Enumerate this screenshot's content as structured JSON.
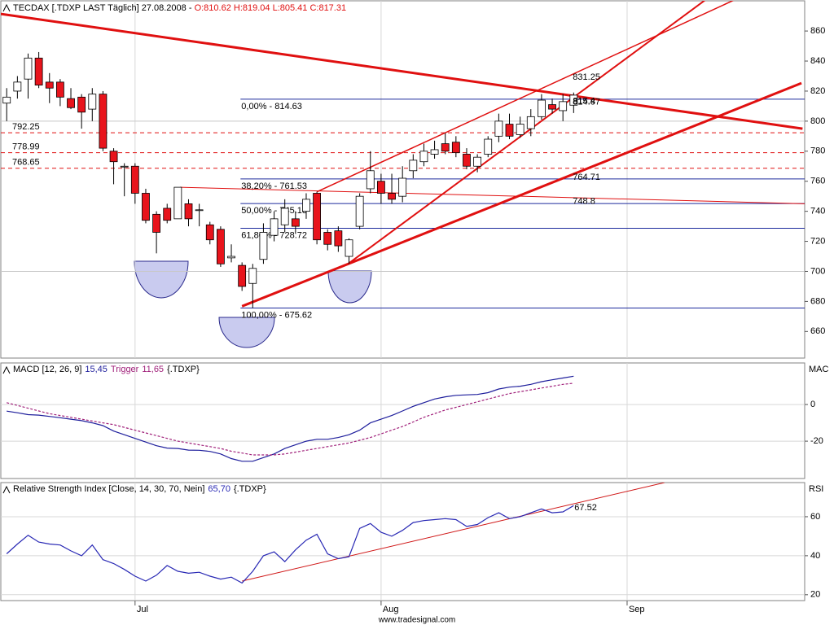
{
  "chart_data": [
    {
      "type": "candlestick",
      "title": "TECDAX [.TDXP LAST Täglich] 27.08.2008 - ",
      "title_values": "O:810.62 H:819.04 L:805.41 C:817.31",
      "open": [
        812,
        820,
        828,
        842,
        826,
        826,
        815,
        816,
        808,
        818,
        780,
        770,
        770,
        752,
        738,
        742,
        735,
        745,
        741,
        731,
        728,
        709,
        704,
        692,
        708,
        724,
        731,
        735,
        740,
        752,
        726,
        727,
        710,
        730,
        755,
        760,
        752,
        750,
        767,
        773,
        778,
        785,
        786,
        778,
        770,
        778,
        790,
        798,
        791,
        795,
        803,
        811,
        807,
        810.62
      ],
      "high": [
        822,
        830,
        845,
        846,
        832,
        828,
        822,
        818,
        822,
        820,
        782,
        772,
        772,
        755,
        740,
        745,
        756,
        748,
        745,
        733,
        730,
        718,
        706,
        705,
        732,
        740,
        748,
        740,
        752,
        753,
        728,
        730,
        722,
        752,
        780,
        765,
        765,
        770,
        778,
        785,
        787,
        792,
        790,
        782,
        778,
        790,
        805,
        805,
        803,
        808,
        818,
        815,
        818,
        819.04
      ],
      "low": [
        800,
        815,
        815,
        822,
        812,
        810,
        808,
        795,
        800,
        780,
        758,
        750,
        745,
        732,
        712,
        732,
        735,
        730,
        730,
        718,
        703,
        706,
        687,
        675.62,
        705,
        720,
        726,
        725,
        735,
        718,
        714,
        713,
        705,
        728,
        752,
        745,
        745,
        746,
        762,
        770,
        775,
        778,
        776,
        768,
        766,
        776,
        786,
        788,
        789,
        790,
        801,
        805,
        800,
        805.41
      ],
      "close": [
        816,
        826,
        842,
        824,
        822,
        816,
        809,
        806,
        818,
        782,
        773,
        770,
        752,
        734,
        726,
        734,
        756,
        735,
        741,
        721,
        705,
        710,
        690,
        702,
        726,
        735,
        742,
        730,
        748,
        721,
        718,
        717,
        721,
        750,
        767,
        752,
        748,
        762,
        774,
        780,
        781,
        780,
        779,
        770,
        776,
        788,
        800,
        790,
        798,
        803,
        814,
        808,
        813,
        817.31
      ],
      "up_color": "#ffffff",
      "down_color": "#e8141c",
      "xlim": [
        -0.55,
        74.6
      ],
      "xticks": [
        {
          "value": 12,
          "label": "Jul"
        },
        {
          "value": 35,
          "label": "Aug"
        },
        {
          "value": 58,
          "label": "Sep"
        }
      ],
      "ylim": [
        642.3,
        880.1
      ],
      "yticks": [
        660,
        680,
        700,
        720,
        740,
        760,
        780,
        800,
        820,
        840,
        860
      ],
      "grid_y": [
        700,
        800
      ],
      "fib_levels": [
        {
          "value": 814.63,
          "label": "0,00% - 814.63"
        },
        {
          "value": 761.53,
          "label": "38,20% - 761.53"
        },
        {
          "value": 745.13,
          "label": "50,00% - 745.13"
        },
        {
          "value": 728.72,
          "label": "61,80% - 728.72"
        },
        {
          "value": 675.62,
          "label": "100,00% - 675.62"
        }
      ],
      "fib_color": "#1c2a9c",
      "support_levels": [
        792.25,
        778.99,
        768.65
      ],
      "line_values": [
        831.25,
        814.87,
        815.4,
        764.71,
        748.8
      ],
      "trend_color": "#e01010",
      "trendlines": [
        {
          "points": [
            [
              -0.55,
              871.4
            ],
            [
              74.4,
              795
            ]
          ],
          "width": 3
        },
        {
          "points": [
            [
              22,
              676.8
            ],
            [
              74.3,
              825.3
            ]
          ],
          "width": 3
        },
        {
          "points": [
            [
              29,
              753
            ],
            [
              68,
              880.6
            ]
          ],
          "width": 1.5
        },
        {
          "points": [
            [
              31.8,
              704.4
            ],
            [
              65.3,
              880.6
            ]
          ],
          "width": 2
        },
        {
          "points": [
            [
              16.2,
              756
            ],
            [
              74.6,
              745
            ]
          ],
          "width": 1
        }
      ]
    },
    {
      "type": "line",
      "title": "MACD [12, 26, 9]",
      "source": "{.TDXP}",
      "y_axis_label": "MAC",
      "xlim": [
        -0.55,
        74.6
      ],
      "xticks": [
        {
          "value": 12,
          "label": "Jul"
        },
        {
          "value": 35,
          "label": "Aug"
        },
        {
          "value": 58,
          "label": "Sep"
        }
      ],
      "ylim": [
        -40.4,
        22.7
      ],
      "yticks": [
        -20,
        0
      ],
      "series": [
        {
          "color": "#1e1e9c",
          "dashed": false,
          "last_label": "15,45",
          "values": [
            -3.6,
            -4.5,
            -5.5,
            -5.8,
            -6.5,
            -7.2,
            -8,
            -8.8,
            -10,
            -11.5,
            -14.5,
            -16.5,
            -18.5,
            -20.5,
            -22.5,
            -23.8,
            -24,
            -24.9,
            -25,
            -25.6,
            -27,
            -29.5,
            -31,
            -31,
            -29,
            -27,
            -24,
            -22,
            -20,
            -19,
            -19,
            -18,
            -16.5,
            -14,
            -10,
            -8,
            -6,
            -3.5,
            -1,
            1,
            3,
            4.2,
            5,
            5.3,
            5.5,
            6.5,
            8.5,
            9.5,
            10,
            11,
            12.5,
            13.5,
            14.5,
            15.45
          ]
        },
        {
          "name": "Trigger",
          "color": "#a0207a",
          "dashed": true,
          "last_label": "11,65",
          "values": [
            1,
            -0.5,
            -2,
            -3.5,
            -5,
            -6,
            -7,
            -8,
            -9,
            -10,
            -11,
            -12.5,
            -14,
            -15.5,
            -17,
            -18.5,
            -20,
            -21,
            -22,
            -23,
            -24,
            -25.5,
            -26.5,
            -27.5,
            -27.5,
            -27.5,
            -27,
            -26,
            -25,
            -24,
            -23,
            -22,
            -21,
            -19.5,
            -18,
            -16,
            -14,
            -12,
            -9.5,
            -7,
            -5,
            -3,
            -1.5,
            0,
            1.5,
            3,
            4.5,
            6,
            7,
            8,
            9,
            10,
            11,
            11.65
          ]
        }
      ]
    },
    {
      "type": "line",
      "title": "Relative Strength Index [Close, 14, 30, 70, Nein]",
      "source": "{.TDXP}",
      "y_axis_label": "RSI",
      "xlim": [
        -0.55,
        74.6
      ],
      "xticks": [
        {
          "value": 12,
          "label": "Jul"
        },
        {
          "value": 35,
          "label": "Aug"
        },
        {
          "value": 58,
          "label": "Sep"
        }
      ],
      "ylim": [
        17,
        77.5
      ],
      "yticks": [
        20,
        40,
        60
      ],
      "series": [
        {
          "color": "#2828b4",
          "dashed": false,
          "last_label": "65,70",
          "values": [
            41,
            46,
            50.5,
            47,
            46,
            45.5,
            42.5,
            40,
            45.5,
            38,
            36,
            33,
            29.5,
            27,
            30,
            35,
            32,
            31,
            31.5,
            29.5,
            28,
            29,
            26,
            32,
            40,
            42,
            37,
            43,
            48,
            51,
            41,
            38.5,
            39.5,
            54,
            56.5,
            52,
            50,
            53,
            57,
            58,
            58.5,
            59,
            58.5,
            55,
            56,
            59.5,
            62,
            59,
            60,
            62,
            64,
            62,
            62.5,
            65.7
          ]
        }
      ],
      "trend_color": "#d01818",
      "trendlines": [
        {
          "points": [
            [
              22,
              27
            ],
            [
              61.5,
              77.5
            ]
          ],
          "width": 1
        }
      ],
      "line_values": [
        67.52
      ]
    }
  ],
  "footer": "www.tradesignal.com"
}
